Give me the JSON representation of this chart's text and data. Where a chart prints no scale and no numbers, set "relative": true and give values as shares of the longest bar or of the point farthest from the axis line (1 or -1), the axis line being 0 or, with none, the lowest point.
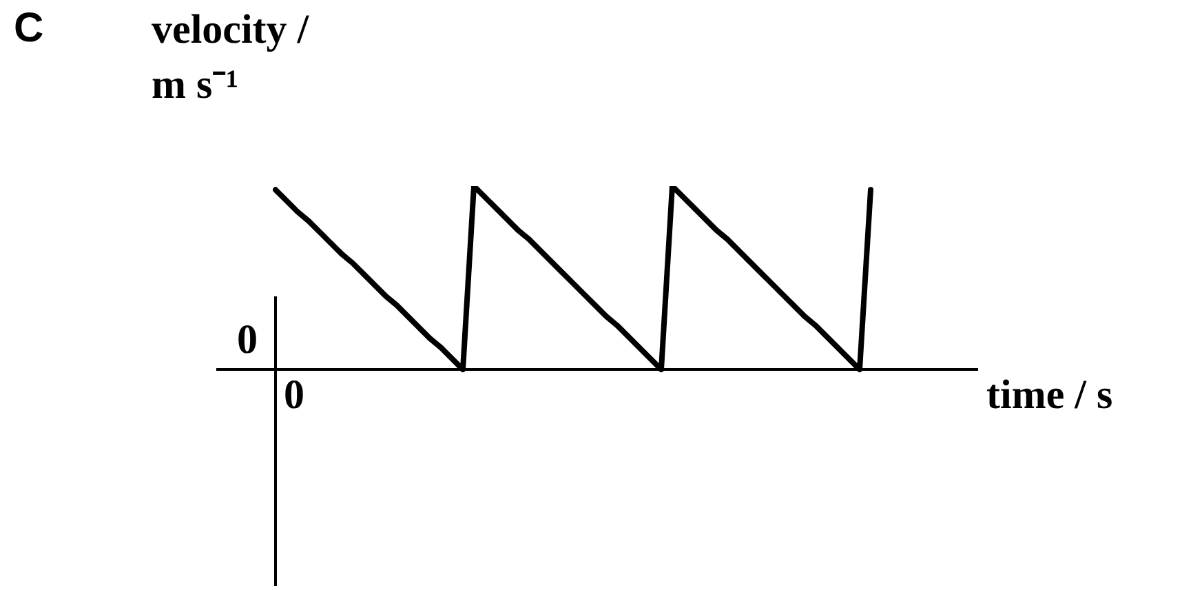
{
  "chart_data": {
    "type": "line",
    "relative": true,
    "ylabel": "velocity / m s⁻¹",
    "xlabel": "time / s",
    "annotations": [
      "C",
      "0",
      "0"
    ],
    "color": "#000000",
    "categories": [
      null,
      null,
      null,
      null,
      null,
      null,
      null,
      null,
      null,
      null,
      null,
      null,
      null,
      null,
      null,
      null,
      null,
      null,
      null,
      null,
      null,
      null,
      null,
      null,
      null,
      null,
      null,
      null,
      null,
      null,
      null,
      null,
      null,
      null,
      null,
      null,
      null,
      null,
      null,
      null,
      null,
      null,
      null,
      null,
      null,
      null,
      null,
      null,
      null,
      null,
      null,
      null,
      null,
      null,
      null,
      null,
      null,
      null,
      null,
      null,
      null,
      null,
      null,
      null
    ],
    "values": [
      0.98,
      0.92,
      0.86,
      0.81,
      0.75,
      0.69,
      0.63,
      0.58,
      0.52,
      0.46,
      0.4,
      0.35,
      0.29,
      0.23,
      0.17,
      0.12,
      0.06,
      0,
      1,
      0.94,
      0.88,
      0.82,
      0.76,
      0.71,
      0.65,
      0.59,
      0.53,
      0.47,
      0.41,
      0.35,
      0.29,
      0.24,
      0.18,
      0.12,
      0.06,
      0,
      1,
      0.94,
      0.88,
      0.82,
      0.76,
      0.71,
      0.65,
      0.59,
      0.53,
      0.47,
      0.41,
      0.35,
      0.29,
      0.24,
      0.18,
      0.12,
      0.06,
      0,
      0.98,
      null,
      null,
      null,
      null,
      null,
      null,
      null,
      null,
      null
    ]
  }
}
